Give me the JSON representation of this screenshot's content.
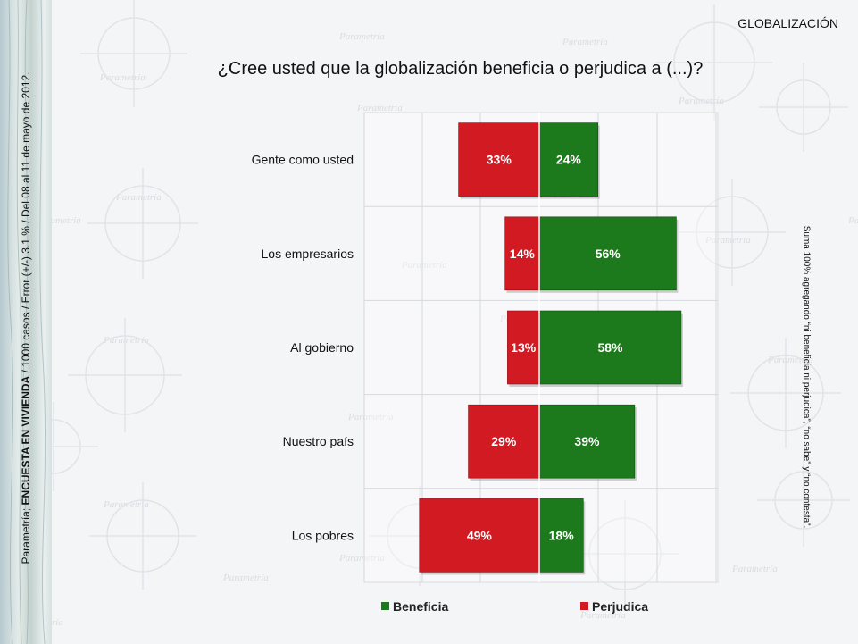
{
  "header": {
    "section_label": "GLOBALIZACIÓN",
    "question": "¿Cree usted que la globalización beneficia o perjudica a (...)?"
  },
  "side_left": {
    "prefix": "Parametría; ",
    "bold": "ENCUESTA EN VIVIENDA",
    "suffix": " / 1000 casos / Error (+/-) 3.1 % / Del 08 al 11 de mayo de 2012."
  },
  "side_right": {
    "note": "Suma 100% agregando “ni beneficia ni perjudica”, “no sabe” y “no contesta”."
  },
  "colors": {
    "beneficia": "#1c7a1c",
    "perjudica": "#d21a23"
  },
  "chart_data": {
    "type": "bar",
    "orientation": "horizontal-diverging",
    "categories": [
      "Gente como usted",
      "Los empresarios",
      "Al gobierno",
      "Nuestro país",
      "Los pobres"
    ],
    "series": [
      {
        "name": "Perjudica",
        "values": [
          33,
          14,
          13,
          29,
          49
        ],
        "labels": [
          "33%",
          "14%",
          "13%",
          "29%",
          "49%"
        ]
      },
      {
        "name": "Beneficia",
        "values": [
          24,
          56,
          58,
          39,
          18
        ],
        "labels": [
          "24%",
          "56%",
          "58%",
          "39%",
          "18%"
        ]
      }
    ],
    "legend": [
      "Beneficia",
      "Perjudica"
    ],
    "legend_position": "bottom",
    "grid": true
  }
}
